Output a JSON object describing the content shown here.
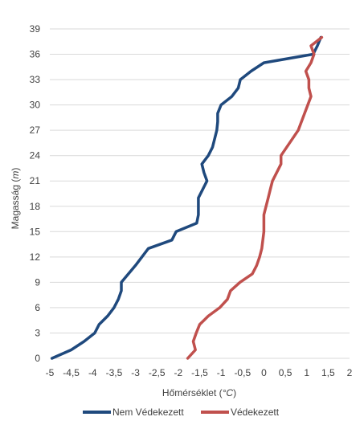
{
  "chart_data": {
    "type": "line",
    "title": "",
    "xlabel": "Hőmérséklet (°C)",
    "ylabel": "Magasság (m)",
    "xlim": [
      -5,
      2
    ],
    "ylim": [
      0,
      39
    ],
    "x_ticks": [
      "-5",
      "-4,5",
      "-4",
      "-3,5",
      "-3",
      "-2,5",
      "-2",
      "-1,5",
      "-1",
      "-0,5",
      "0",
      "0,5",
      "1",
      "1,5",
      "2"
    ],
    "y_ticks": [
      "0",
      "3",
      "6",
      "9",
      "12",
      "15",
      "18",
      "21",
      "24",
      "27",
      "30",
      "33",
      "36",
      "39"
    ],
    "grid": "horizontal",
    "legend_position": "bottom",
    "series": [
      {
        "name": "Nem Védekezett",
        "color": "#1f497d",
        "points": [
          [
            -4.95,
            0
          ],
          [
            -4.5,
            1
          ],
          [
            -4.2,
            2
          ],
          [
            -3.95,
            3
          ],
          [
            -3.85,
            4
          ],
          [
            -3.65,
            5
          ],
          [
            -3.5,
            6
          ],
          [
            -3.4,
            7
          ],
          [
            -3.33,
            8
          ],
          [
            -3.33,
            9
          ],
          [
            -3.0,
            11
          ],
          [
            -2.7,
            13
          ],
          [
            -2.15,
            14
          ],
          [
            -2.05,
            15
          ],
          [
            -1.57,
            16
          ],
          [
            -1.53,
            17
          ],
          [
            -1.53,
            18
          ],
          [
            -1.53,
            19
          ],
          [
            -1.33,
            21
          ],
          [
            -1.4,
            22
          ],
          [
            -1.45,
            23
          ],
          [
            -1.3,
            24
          ],
          [
            -1.2,
            25
          ],
          [
            -1.1,
            27
          ],
          [
            -1.08,
            28
          ],
          [
            -1.08,
            29
          ],
          [
            -1.0,
            30
          ],
          [
            -0.75,
            31
          ],
          [
            -0.6,
            32
          ],
          [
            -0.55,
            33
          ],
          [
            -0.3,
            34
          ],
          [
            0.0,
            35
          ],
          [
            1.15,
            36
          ],
          [
            1.25,
            37
          ],
          [
            1.33,
            38
          ]
        ]
      },
      {
        "name": "Védekezett",
        "color": "#c0504d",
        "points": [
          [
            -1.78,
            0
          ],
          [
            -1.6,
            1
          ],
          [
            -1.65,
            2
          ],
          [
            -1.58,
            3
          ],
          [
            -1.5,
            4
          ],
          [
            -1.3,
            5
          ],
          [
            -1.03,
            6
          ],
          [
            -0.85,
            7
          ],
          [
            -0.78,
            8
          ],
          [
            -0.56,
            9
          ],
          [
            -0.27,
            10
          ],
          [
            -0.17,
            11
          ],
          [
            -0.1,
            12
          ],
          [
            -0.05,
            13
          ],
          [
            0.0,
            15
          ],
          [
            0.0,
            16
          ],
          [
            0.0,
            17
          ],
          [
            0.1,
            19
          ],
          [
            0.15,
            20
          ],
          [
            0.2,
            21
          ],
          [
            0.4,
            23
          ],
          [
            0.4,
            24
          ],
          [
            0.8,
            27
          ],
          [
            1.1,
            31
          ],
          [
            1.05,
            32
          ],
          [
            1.05,
            33
          ],
          [
            0.98,
            34
          ],
          [
            1.1,
            35
          ],
          [
            1.17,
            36
          ],
          [
            1.1,
            37
          ],
          [
            1.35,
            38
          ]
        ]
      }
    ]
  }
}
